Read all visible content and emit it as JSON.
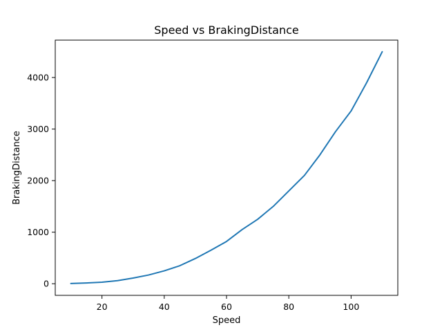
{
  "chart_data": {
    "type": "line",
    "title": "Speed vs BrakingDistance",
    "xlabel": "Speed",
    "ylabel": "BrakingDistance",
    "xlim": [
      5,
      115
    ],
    "ylim": [
      -225,
      4725
    ],
    "xticks": [
      20,
      40,
      60,
      80,
      100
    ],
    "yticks": [
      0,
      1000,
      2000,
      3000,
      4000
    ],
    "grid": false,
    "legend": "none",
    "series": [
      {
        "color": "#1f77b4",
        "x": [
          10,
          15,
          20,
          25,
          30,
          35,
          40,
          45,
          50,
          55,
          60,
          65,
          70,
          75,
          80,
          85,
          90,
          95,
          100,
          105,
          110
        ],
        "y": [
          5,
          15,
          30,
          60,
          110,
          170,
          250,
          350,
          490,
          650,
          820,
          1050,
          1250,
          1500,
          1800,
          2100,
          2500,
          2950,
          3350,
          3900,
          4500
        ]
      }
    ]
  }
}
